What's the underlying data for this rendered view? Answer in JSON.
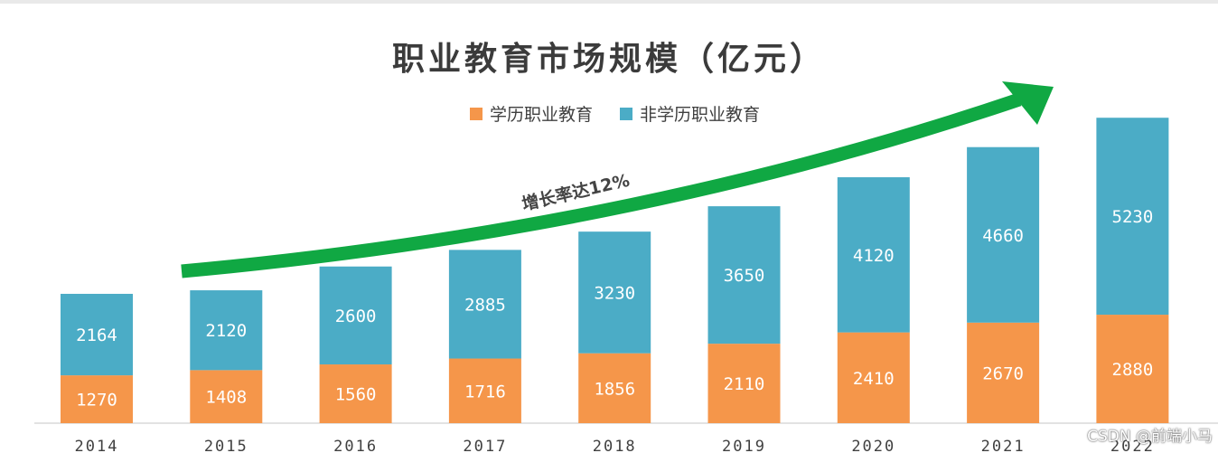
{
  "chart_data": {
    "type": "bar",
    "stacked": true,
    "title": "职业教育市场规模（亿元）",
    "categories": [
      "2014",
      "2015",
      "2016",
      "2017",
      "2018",
      "2019",
      "2020",
      "2021",
      "2022"
    ],
    "series": [
      {
        "name": "学历职业教育",
        "color": "#f5964a",
        "values": [
          1270,
          1408,
          1560,
          1716,
          1856,
          2110,
          2410,
          2670,
          2880
        ]
      },
      {
        "name": "非学历职业教育",
        "color": "#4bacc6",
        "values": [
          2164,
          2120,
          2600,
          2885,
          3230,
          3650,
          4120,
          4660,
          5230
        ]
      }
    ],
    "annotation": {
      "text": "增长率达12%",
      "arrow_color": "#10a843"
    },
    "legend": "top",
    "grid": false
  },
  "watermark": "CSDN @前端小马"
}
